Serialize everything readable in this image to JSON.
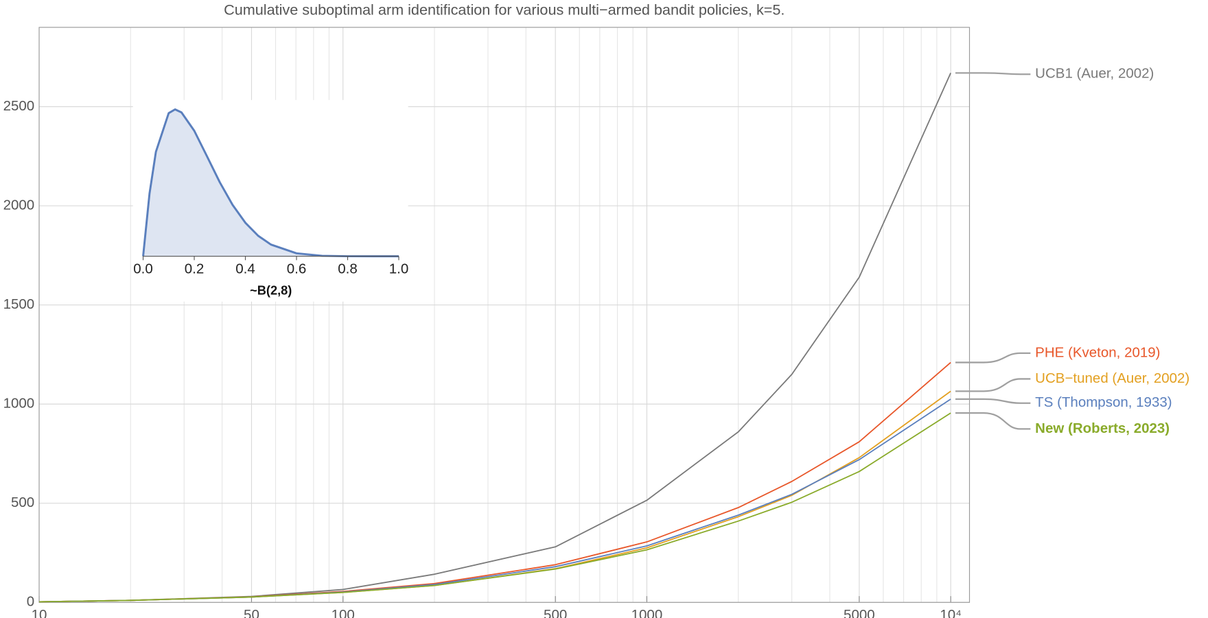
{
  "chart_data": [
    {
      "type": "line",
      "title": "Cumulative suboptimal arm identification for various multi−armed bandit policies, k=5.",
      "log_x": true,
      "grid": true,
      "x": [
        10,
        20,
        50,
        100,
        200,
        500,
        1000,
        2000,
        3000,
        5000,
        10000
      ],
      "xlim": [
        10,
        11530
      ],
      "xticks": [
        10,
        50,
        100,
        500,
        1000,
        5000,
        {
          "value": 10000,
          "label": "10⁴"
        }
      ],
      "xminor_ticks": [
        20,
        30,
        40,
        60,
        70,
        80,
        90,
        200,
        300,
        400,
        600,
        700,
        800,
        900,
        2000,
        3000,
        4000,
        6000,
        7000,
        8000,
        9000
      ],
      "ylim": [
        0,
        2900
      ],
      "yticks": [
        0,
        500,
        1000,
        1500,
        2000,
        2500
      ],
      "series": [
        {
          "name": "UCB1 (Auer, 2002)",
          "color": "#7a7a7a",
          "values": [
            3,
            10,
            30,
            65,
            142,
            280,
            515,
            860,
            1150,
            1640,
            2670
          ]
        },
        {
          "name": "PHE (Kveton, 2019)",
          "color": "#e8572a",
          "values": [
            3,
            10,
            28,
            55,
            95,
            190,
            305,
            478,
            610,
            810,
            1210
          ]
        },
        {
          "name": "UCB−tuned (Auer, 2002)",
          "color": "#e3a021",
          "values": [
            3,
            10,
            27,
            50,
            85,
            170,
            275,
            432,
            540,
            730,
            1065
          ]
        },
        {
          "name": "TS (Thompson, 1933)",
          "color": "#5a7fbd",
          "values": [
            3,
            10,
            27,
            52,
            90,
            180,
            285,
            440,
            545,
            720,
            1025
          ]
        },
        {
          "name": "New (Roberts, 2023)",
          "color": "#8aab2b",
          "bold": true,
          "values": [
            3,
            10,
            27,
            50,
            85,
            168,
            265,
            410,
            505,
            660,
            955
          ]
        }
      ]
    },
    {
      "type": "area",
      "xlabel": "~B(2,8)",
      "color": "#5a7fbd",
      "x": [
        0,
        0.025,
        0.05,
        0.1,
        0.125,
        0.15,
        0.2,
        0.25,
        0.3,
        0.35,
        0.4,
        0.45,
        0.5,
        0.6,
        0.7,
        0.8,
        0.9,
        1
      ],
      "values": [
        0,
        1.508,
        2.514,
        3.444,
        3.534,
        3.462,
        3.02,
        2.403,
        1.779,
        1.235,
        0.806,
        0.493,
        0.281,
        0.071,
        0.011,
        0.001,
        0,
        0
      ],
      "xlim": [
        0,
        1
      ],
      "xticks": [
        {
          "value": 0,
          "label": "0.0"
        },
        {
          "value": 0.2,
          "label": "0.2"
        },
        {
          "value": 0.4,
          "label": "0.4"
        },
        {
          "value": 0.6,
          "label": "0.6"
        },
        {
          "value": 0.8,
          "label": "0.8"
        },
        {
          "value": 1,
          "label": "1.0"
        }
      ],
      "ylim": [
        0,
        3.76
      ]
    }
  ]
}
